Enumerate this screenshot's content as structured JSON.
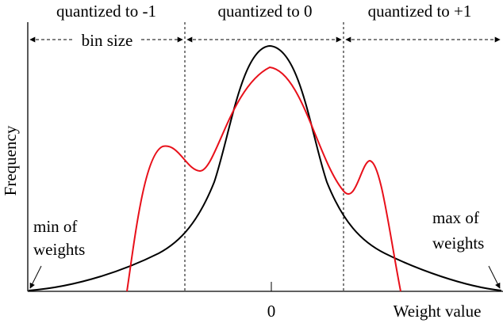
{
  "header": {
    "region_left": "quantized to -1",
    "region_center": "quantized to 0",
    "region_right": "quantized to +1"
  },
  "annotations": {
    "bin_size": "bin size",
    "min_line1": "min of",
    "min_line2": "weights",
    "max_line1": "max of",
    "max_line2": "weights"
  },
  "axes": {
    "ylabel": "Frequency",
    "xlabel": "Weight value",
    "zero_tick": "0"
  },
  "colors": {
    "black_curve": "#000000",
    "red_curve": "#e8101a",
    "axis": "#000000"
  }
}
